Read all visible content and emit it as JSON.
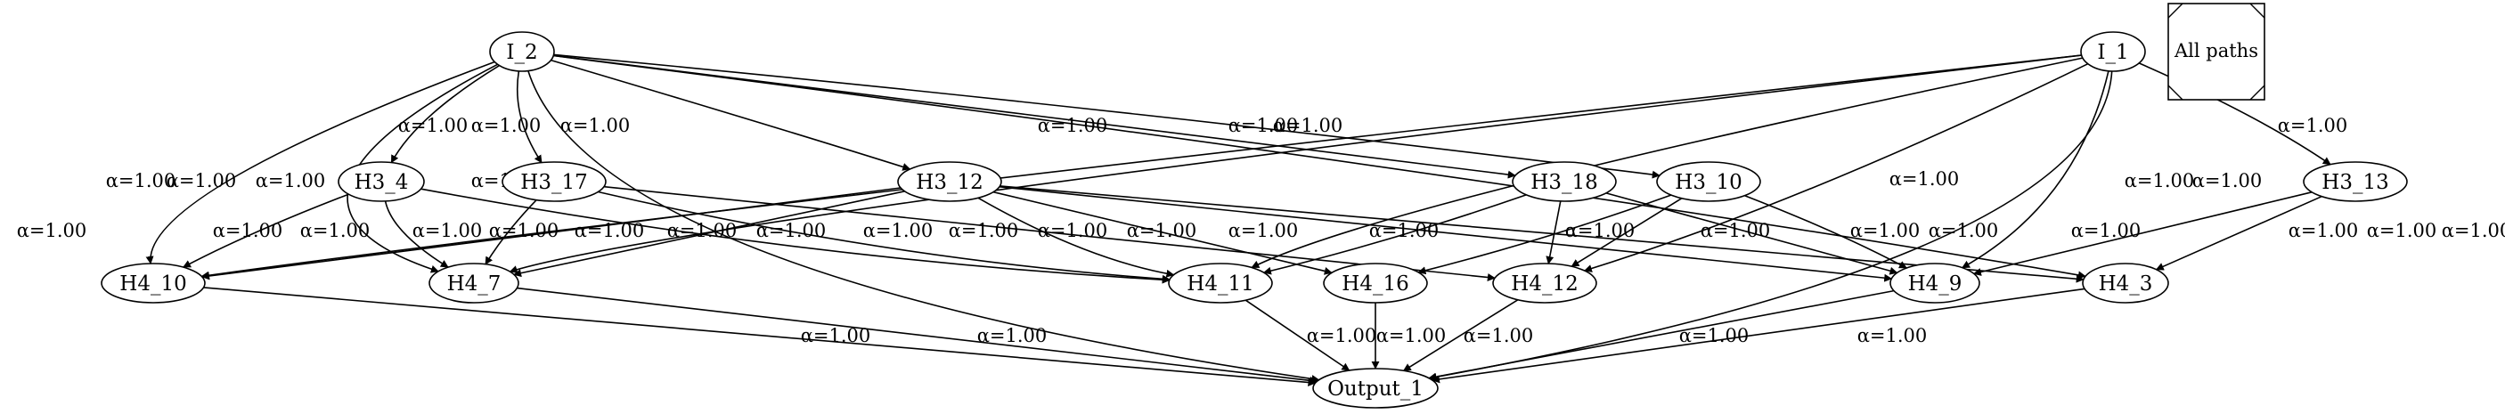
{
  "legend": {
    "label": "All paths"
  },
  "nodes": {
    "I_2": "I_2",
    "I_1": "I_1",
    "H3_4": "H3_4",
    "H3_17": "H3_17",
    "H3_12": "H3_12",
    "H3_18": "H3_18",
    "H3_10": "H3_10",
    "H3_13": "H3_13",
    "H4_10": "H4_10",
    "H4_7": "H4_7",
    "H4_11": "H4_11",
    "H4_16": "H4_16",
    "H4_12": "H4_12",
    "H4_9": "H4_9",
    "H4_3": "H4_3",
    "Output_1": "Output_1"
  },
  "edges": [
    {
      "from": "I_2",
      "to": "H3_4",
      "label": "α=1.00"
    },
    {
      "from": "I_2",
      "to": "H3_17",
      "label": "α=1.00"
    },
    {
      "from": "I_2",
      "to": "H3_12",
      "label": "α=1.00"
    },
    {
      "from": "I_2",
      "to": "H3_18",
      "label": "α=1.00"
    },
    {
      "from": "I_2",
      "to": "H3_10",
      "label": "α=1.00"
    },
    {
      "from": "I_2",
      "to": "H4_3",
      "label": "α=1.00"
    },
    {
      "from": "I_2",
      "to": "H4_10",
      "label": "α=1.00"
    },
    {
      "from": "I_2",
      "to": "H4_7",
      "label": "α=1.00"
    },
    {
      "from": "I_2",
      "to": "Output_1",
      "label": "α=1.00"
    },
    {
      "from": "I_1",
      "to": "H4_10",
      "label": "α=1.00"
    },
    {
      "from": "I_1",
      "to": "H4_7",
      "label": "α=1.00"
    },
    {
      "from": "I_1",
      "to": "H4_11",
      "label": "α=1.00"
    },
    {
      "from": "I_1",
      "to": "H4_12",
      "label": "α=1.00"
    },
    {
      "from": "I_1",
      "to": "H4_9",
      "label": "α=1.00"
    },
    {
      "from": "I_1",
      "to": "H3_13",
      "label": "α=1.00"
    },
    {
      "from": "I_1",
      "to": "Output_1",
      "label": "α=1.00"
    },
    {
      "from": "H3_4",
      "to": "H4_10",
      "label": "α=1.00"
    },
    {
      "from": "H3_4",
      "to": "H4_7",
      "label": "α=1.00"
    },
    {
      "from": "H3_4",
      "to": "H4_11",
      "label": "α=1.00"
    },
    {
      "from": "H3_17",
      "to": "H4_7",
      "label": "α=1.00"
    },
    {
      "from": "H3_17",
      "to": "H4_11",
      "label": "α=1.00"
    },
    {
      "from": "H3_17",
      "to": "H4_12",
      "label": "α=1.00"
    },
    {
      "from": "H3_12",
      "to": "H4_10",
      "label": "α=1.00"
    },
    {
      "from": "H3_12",
      "to": "H4_7",
      "label": "α=1.00"
    },
    {
      "from": "H3_12",
      "to": "H4_11",
      "label": "α=1.00"
    },
    {
      "from": "H3_12",
      "to": "H4_16",
      "label": "α=1.00"
    },
    {
      "from": "H3_12",
      "to": "H4_9",
      "label": "α=1.00"
    },
    {
      "from": "H3_12",
      "to": "H4_3",
      "label": "α=1.00"
    },
    {
      "from": "H3_18",
      "to": "H4_11",
      "label": "α=1.00"
    },
    {
      "from": "H3_18",
      "to": "H4_12",
      "label": "α=1.00"
    },
    {
      "from": "H3_18",
      "to": "H4_9",
      "label": "α=1.00"
    },
    {
      "from": "H3_10",
      "to": "H4_16",
      "label": "α=1.00"
    },
    {
      "from": "H3_10",
      "to": "H4_12",
      "label": "α=1.00"
    },
    {
      "from": "H3_10",
      "to": "H4_9",
      "label": "α=1.00"
    },
    {
      "from": "H3_13",
      "to": "H4_9",
      "label": "α=1.00"
    },
    {
      "from": "H3_13",
      "to": "H4_3",
      "label": "α=1.00"
    },
    {
      "from": "H4_10",
      "to": "Output_1",
      "label": "α=1.00"
    },
    {
      "from": "H4_7",
      "to": "Output_1",
      "label": "α=1.00"
    },
    {
      "from": "H4_11",
      "to": "Output_1",
      "label": "α=1.00"
    },
    {
      "from": "H4_16",
      "to": "Output_1",
      "label": "α=1.00"
    },
    {
      "from": "H4_12",
      "to": "Output_1",
      "label": "α=1.00"
    },
    {
      "from": "H4_9",
      "to": "Output_1",
      "label": "α=1.00"
    },
    {
      "from": "H4_3",
      "to": "Output_1",
      "label": "α=1.00"
    }
  ]
}
